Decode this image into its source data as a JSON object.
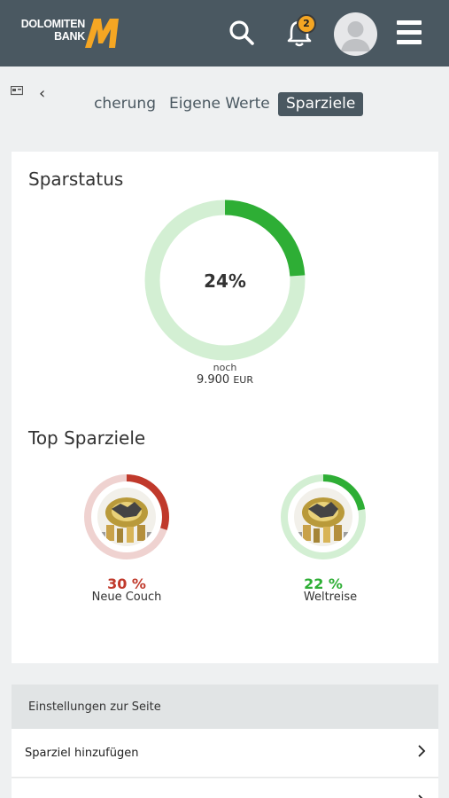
{
  "header": {
    "logo_line1": "DOLOMITEN",
    "logo_line2": "BANK",
    "icons": [
      "search-icon",
      "bell-icon",
      "avatar-icon",
      "menu-icon"
    ],
    "notification_count": "2",
    "background": "#4a5861",
    "brand_color": "#f5a623"
  },
  "nav": {
    "back_icon": "chevron-left-icon",
    "tabs": [
      {
        "label": "Versicherung",
        "visible_label": "cherung",
        "active": false
      },
      {
        "label": "Eigene Werte",
        "active": false
      },
      {
        "label": "Sparziele",
        "active": true
      }
    ]
  },
  "sparstatus": {
    "title": "Sparstatus",
    "percent": 24,
    "percent_label": "24%",
    "remaining_caption": "noch",
    "remaining_amount": "9.900",
    "remaining_currency": "EUR",
    "progress_color": "#2eae35",
    "track_color": "#d3efd3"
  },
  "top_goals": {
    "title": "Top Sparziele",
    "items": [
      {
        "name": "Neue Couch",
        "percent": 30,
        "percent_label": "30 %",
        "color": "#c0392b",
        "track": "#efd2d0"
      },
      {
        "name": "Weltreise",
        "percent": 22,
        "percent_label": "22 %",
        "color": "#2eae35",
        "track": "#d3efd3"
      }
    ]
  },
  "settings": {
    "header": "Einstellungen zur Seite",
    "rows": [
      {
        "label": "Sparziel hinzufügen"
      },
      {
        "label": ""
      }
    ]
  }
}
